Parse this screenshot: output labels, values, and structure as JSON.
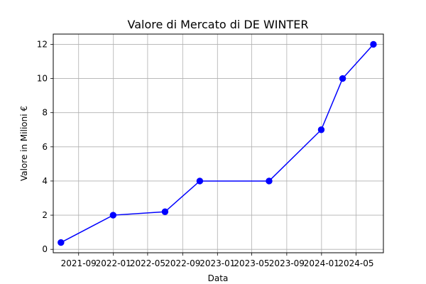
{
  "chart_data": {
    "type": "line",
    "title": "Valore di Mercato di DE WINTER",
    "xlabel": "Data",
    "ylabel": "Valore in Milioni €",
    "x_type": "date",
    "x_ticks": [
      {
        "date": "2021-09-01",
        "label": "2021-09"
      },
      {
        "date": "2022-01-01",
        "label": "2022-01"
      },
      {
        "date": "2022-05-01",
        "label": "2022-05"
      },
      {
        "date": "2022-09-01",
        "label": "2022-09"
      },
      {
        "date": "2023-01-01",
        "label": "2023-01"
      },
      {
        "date": "2023-05-01",
        "label": "2023-05"
      },
      {
        "date": "2023-09-01",
        "label": "2023-09"
      },
      {
        "date": "2024-01-01",
        "label": "2024-01"
      },
      {
        "date": "2024-05-01",
        "label": "2024-05"
      }
    ],
    "y_ticks": [
      0,
      2,
      4,
      6,
      8,
      10,
      12
    ],
    "ylim": [
      -0.2,
      12.6
    ],
    "xlim": [
      "2021-06-04",
      "2024-08-05"
    ],
    "grid": true,
    "series": [
      {
        "color": "#0000ff",
        "marker": "circle",
        "points": [
          {
            "x": "2021-07-01",
            "y": 0.4
          },
          {
            "x": "2021-12-31",
            "y": 2.0
          },
          {
            "x": "2022-07-01",
            "y": 2.2
          },
          {
            "x": "2022-10-31",
            "y": 4.0
          },
          {
            "x": "2023-07-01",
            "y": 4.0
          },
          {
            "x": "2023-12-31",
            "y": 7.0
          },
          {
            "x": "2024-03-15",
            "y": 10.0
          },
          {
            "x": "2024-07-01",
            "y": 12.0
          }
        ]
      }
    ]
  }
}
